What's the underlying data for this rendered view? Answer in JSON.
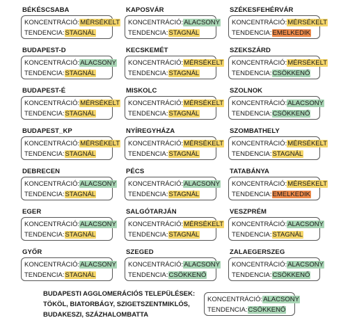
{
  "labels": {
    "concentration": "KONCENTRÁCIÓ:",
    "trend": "TENDENCIA:"
  },
  "cities": [
    {
      "name": "BÉKÉSCSABA",
      "conc": "MÉRSÉKELT",
      "conc_level": "mid",
      "trend": "STAGNÁL",
      "trend_level": "stag"
    },
    {
      "name": "KAPOSVÁR",
      "conc": "ALACSONY",
      "conc_level": "low",
      "trend": "STAGNÁL",
      "trend_level": "stag"
    },
    {
      "name": "SZÉKESFEHÉRVÁR",
      "conc": "MÉRSÉKELT",
      "conc_level": "mid",
      "trend": "EMELKEDIK",
      "trend_level": "rise"
    },
    {
      "name": "BUDAPEST-D",
      "conc": "ALACSONY",
      "conc_level": "low",
      "trend": "STAGNÁL",
      "trend_level": "stag"
    },
    {
      "name": "KECSKEMÉT",
      "conc": "MÉRSÉKELT",
      "conc_level": "mid",
      "trend": "STAGNÁL",
      "trend_level": "stag"
    },
    {
      "name": "SZEKSZÁRD",
      "conc": "MÉRSÉKELT",
      "conc_level": "mid",
      "trend": "CSÖKKENŐ",
      "trend_level": "dec"
    },
    {
      "name": "BUDAPEST-É",
      "conc": "MÉRSÉKELT",
      "conc_level": "mid",
      "trend": "STAGNÁL",
      "trend_level": "stag"
    },
    {
      "name": "MISKOLC",
      "conc": "MÉRSÉKELT",
      "conc_level": "mid",
      "trend": "STAGNÁL",
      "trend_level": "stag"
    },
    {
      "name": "SZOLNOK",
      "conc": "ALACSONY",
      "conc_level": "low",
      "trend": "CSÖKKENŐ",
      "trend_level": "dec"
    },
    {
      "name": "BUDAPEST_KP",
      "conc": "MÉRSÉKELT",
      "conc_level": "mid",
      "trend": "STAGNÁL",
      "trend_level": "stag"
    },
    {
      "name": "NYÍREGYHÁZA",
      "conc": "MÉRSÉKELT",
      "conc_level": "mid",
      "trend": "STAGNÁL",
      "trend_level": "stag"
    },
    {
      "name": "SZOMBATHELY",
      "conc": "MÉRSÉKELT",
      "conc_level": "mid",
      "trend": "STAGNÁL",
      "trend_level": "stag"
    },
    {
      "name": "DEBRECEN",
      "conc": "ALACSONY",
      "conc_level": "low",
      "trend": "STAGNÁL",
      "trend_level": "stag"
    },
    {
      "name": "PÉCS",
      "conc": "ALACSONY",
      "conc_level": "low",
      "trend": "STAGNÁL",
      "trend_level": "stag"
    },
    {
      "name": "TATABÁNYA",
      "conc": "MÉRSÉKELT",
      "conc_level": "mid",
      "trend": "EMELKEDIK",
      "trend_level": "rise"
    },
    {
      "name": "EGER",
      "conc": "ALACSONY",
      "conc_level": "low",
      "trend": "STAGNÁL",
      "trend_level": "stag"
    },
    {
      "name": "SALGÓTARJÁN",
      "conc": "MÉRSÉKELT",
      "conc_level": "mid",
      "trend": "STAGNÁL",
      "trend_level": "stag"
    },
    {
      "name": "VESZPRÉM",
      "conc": "ALACSONY",
      "conc_level": "low",
      "trend": "STAGNÁL",
      "trend_level": "stag"
    },
    {
      "name": "GYŐR",
      "conc": "ALACSONY",
      "conc_level": "low",
      "trend": "STAGNÁL",
      "trend_level": "stag"
    },
    {
      "name": "SZEGED",
      "conc": "ALACSONY",
      "conc_level": "low",
      "trend": "CSÖKKENŐ",
      "trend_level": "dec"
    },
    {
      "name": "ZALAEGERSZEG",
      "conc": "ALACSONY",
      "conc_level": "low",
      "trend": "CSÖKKENŐ",
      "trend_level": "dec"
    }
  ],
  "footer": {
    "title_lines": [
      "BUDAPESTI AGGLOMERÁCIÓS TELEPÜLÉSEK:",
      "TÖKÖL, BIATORBÁGY, SZIGETSZENTMIKLÓS,",
      "BUDAKESZI, SZÁZHALOMBATTA"
    ],
    "conc": "ALACSONY",
    "conc_level": "low",
    "trend": "CSÖKKENŐ",
    "trend_level": "dec"
  },
  "colors": {
    "low": "#a8d5b5",
    "mid": "#f5d66a",
    "rise": "#ee8a4a",
    "border": "#555555"
  }
}
